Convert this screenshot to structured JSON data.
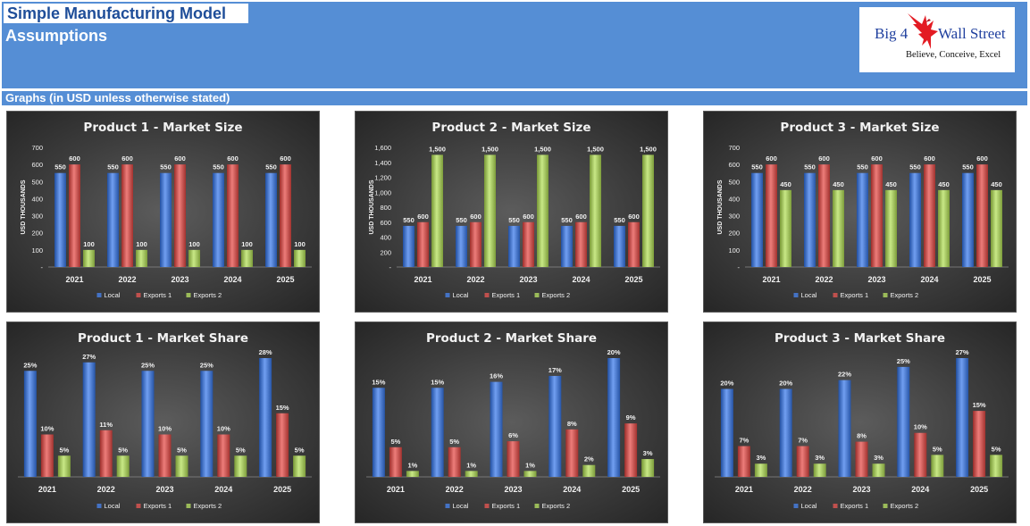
{
  "header": {
    "title": "Simple Manufacturing Model",
    "subtitle": "Assumptions",
    "section": "Graphs (in USD unless otherwise stated)",
    "logo": {
      "name_part1": "Big 4",
      "name_part2": "Wall Street",
      "tagline": "Believe, Conceive, Excel",
      "icon": "eagle-icon"
    }
  },
  "colors": {
    "header_bg": "#558ed5",
    "title_color": "#1f4e99",
    "local": "#4472c4",
    "exports1": "#c0504d",
    "exports2": "#9bbb59",
    "chart_bg": "#404040"
  },
  "chart_data": [
    {
      "type": "bar",
      "title": "Product 1 - Market Size",
      "ylabel": "USD THOUSANDS",
      "categories": [
        "2021",
        "2022",
        "2023",
        "2024",
        "2025"
      ],
      "ylim": [
        0,
        700
      ],
      "yticks": [
        0,
        100,
        200,
        300,
        400,
        500,
        600,
        700
      ],
      "ytick_labels": [
        "-",
        "100",
        "200",
        "300",
        "400",
        "500",
        "600",
        "700"
      ],
      "series": [
        {
          "name": "Local",
          "values": [
            550,
            550,
            550,
            550,
            550
          ],
          "labels": [
            "550",
            "550",
            "550",
            "550",
            "550"
          ]
        },
        {
          "name": "Exports 1",
          "values": [
            600,
            600,
            600,
            600,
            600
          ],
          "labels": [
            "600",
            "600",
            "600",
            "600",
            "600"
          ]
        },
        {
          "name": "Exports 2",
          "values": [
            100,
            100,
            100,
            100,
            100
          ],
          "labels": [
            "100",
            "100",
            "100",
            "100",
            "100"
          ]
        }
      ],
      "legend": "bottom"
    },
    {
      "type": "bar",
      "title": "Product 2 - Market Size",
      "ylabel": "USD THOUSANDS",
      "categories": [
        "2021",
        "2022",
        "2023",
        "2024",
        "2025"
      ],
      "ylim": [
        0,
        1600
      ],
      "yticks": [
        0,
        200,
        400,
        600,
        800,
        1000,
        1200,
        1400,
        1600
      ],
      "ytick_labels": [
        "-",
        "200",
        "400",
        "600",
        "800",
        "1,000",
        "1,200",
        "1,400",
        "1,600"
      ],
      "series": [
        {
          "name": "Local",
          "values": [
            550,
            550,
            550,
            550,
            550
          ],
          "labels": [
            "550",
            "550",
            "550",
            "550",
            "550"
          ]
        },
        {
          "name": "Exports 1",
          "values": [
            600,
            600,
            600,
            600,
            600
          ],
          "labels": [
            "600",
            "600",
            "600",
            "600",
            "600"
          ]
        },
        {
          "name": "Exports 2",
          "values": [
            1500,
            1500,
            1500,
            1500,
            1500
          ],
          "labels": [
            "1,500",
            "1,500",
            "1,500",
            "1,500",
            "1,500"
          ]
        }
      ],
      "legend": "bottom"
    },
    {
      "type": "bar",
      "title": "Product 3 - Market Size",
      "ylabel": "USD THOUSANDS",
      "categories": [
        "2021",
        "2022",
        "2023",
        "2024",
        "2025"
      ],
      "ylim": [
        0,
        700
      ],
      "yticks": [
        0,
        100,
        200,
        300,
        400,
        500,
        600,
        700
      ],
      "ytick_labels": [
        "-",
        "100",
        "200",
        "300",
        "400",
        "500",
        "600",
        "700"
      ],
      "series": [
        {
          "name": "Local",
          "values": [
            550,
            550,
            550,
            550,
            550
          ],
          "labels": [
            "550",
            "550",
            "550",
            "550",
            "550"
          ]
        },
        {
          "name": "Exports 1",
          "values": [
            600,
            600,
            600,
            600,
            600
          ],
          "labels": [
            "600",
            "600",
            "600",
            "600",
            "600"
          ]
        },
        {
          "name": "Exports 2",
          "values": [
            450,
            450,
            450,
            450,
            450
          ],
          "labels": [
            "450",
            "450",
            "450",
            "450",
            "450"
          ]
        }
      ],
      "legend": "bottom"
    },
    {
      "type": "bar",
      "title": "Product 1 - Market Share",
      "categories": [
        "2021",
        "2022",
        "2023",
        "2024",
        "2025"
      ],
      "ylim": [
        0,
        28
      ],
      "series": [
        {
          "name": "Local",
          "values": [
            25,
            27,
            25,
            25,
            28
          ],
          "labels": [
            "25%",
            "27%",
            "25%",
            "25%",
            "28%"
          ]
        },
        {
          "name": "Exports 1",
          "values": [
            10,
            11,
            10,
            10,
            15
          ],
          "labels": [
            "10%",
            "11%",
            "10%",
            "10%",
            "15%"
          ]
        },
        {
          "name": "Exports 2",
          "values": [
            5,
            5,
            5,
            5,
            5
          ],
          "labels": [
            "5%",
            "5%",
            "5%",
            "5%",
            "5%"
          ]
        }
      ],
      "legend": "bottom"
    },
    {
      "type": "bar",
      "title": "Product 2 - Market Share",
      "categories": [
        "2021",
        "2022",
        "2023",
        "2024",
        "2025"
      ],
      "ylim": [
        0,
        20
      ],
      "series": [
        {
          "name": "Local",
          "values": [
            15,
            15,
            16,
            17,
            20
          ],
          "labels": [
            "15%",
            "15%",
            "16%",
            "17%",
            "20%"
          ]
        },
        {
          "name": "Exports 1",
          "values": [
            5,
            5,
            6,
            8,
            9
          ],
          "labels": [
            "5%",
            "5%",
            "6%",
            "8%",
            "9%"
          ]
        },
        {
          "name": "Exports 2",
          "values": [
            1,
            1,
            1,
            2,
            3
          ],
          "labels": [
            "1%",
            "1%",
            "1%",
            "2%",
            "3%"
          ]
        }
      ],
      "legend": "bottom"
    },
    {
      "type": "bar",
      "title": "Product 3 - Market Share",
      "categories": [
        "2021",
        "2022",
        "2023",
        "2024",
        "2025"
      ],
      "ylim": [
        0,
        27
      ],
      "series": [
        {
          "name": "Local",
          "values": [
            20,
            20,
            22,
            25,
            27
          ],
          "labels": [
            "20%",
            "20%",
            "22%",
            "25%",
            "27%"
          ]
        },
        {
          "name": "Exports 1",
          "values": [
            7,
            7,
            8,
            10,
            15
          ],
          "labels": [
            "7%",
            "7%",
            "8%",
            "10%",
            "15%"
          ]
        },
        {
          "name": "Exports 2",
          "values": [
            3,
            3,
            3,
            5,
            5
          ],
          "labels": [
            "3%",
            "3%",
            "3%",
            "5%",
            "5%"
          ]
        }
      ],
      "legend": "bottom"
    }
  ]
}
